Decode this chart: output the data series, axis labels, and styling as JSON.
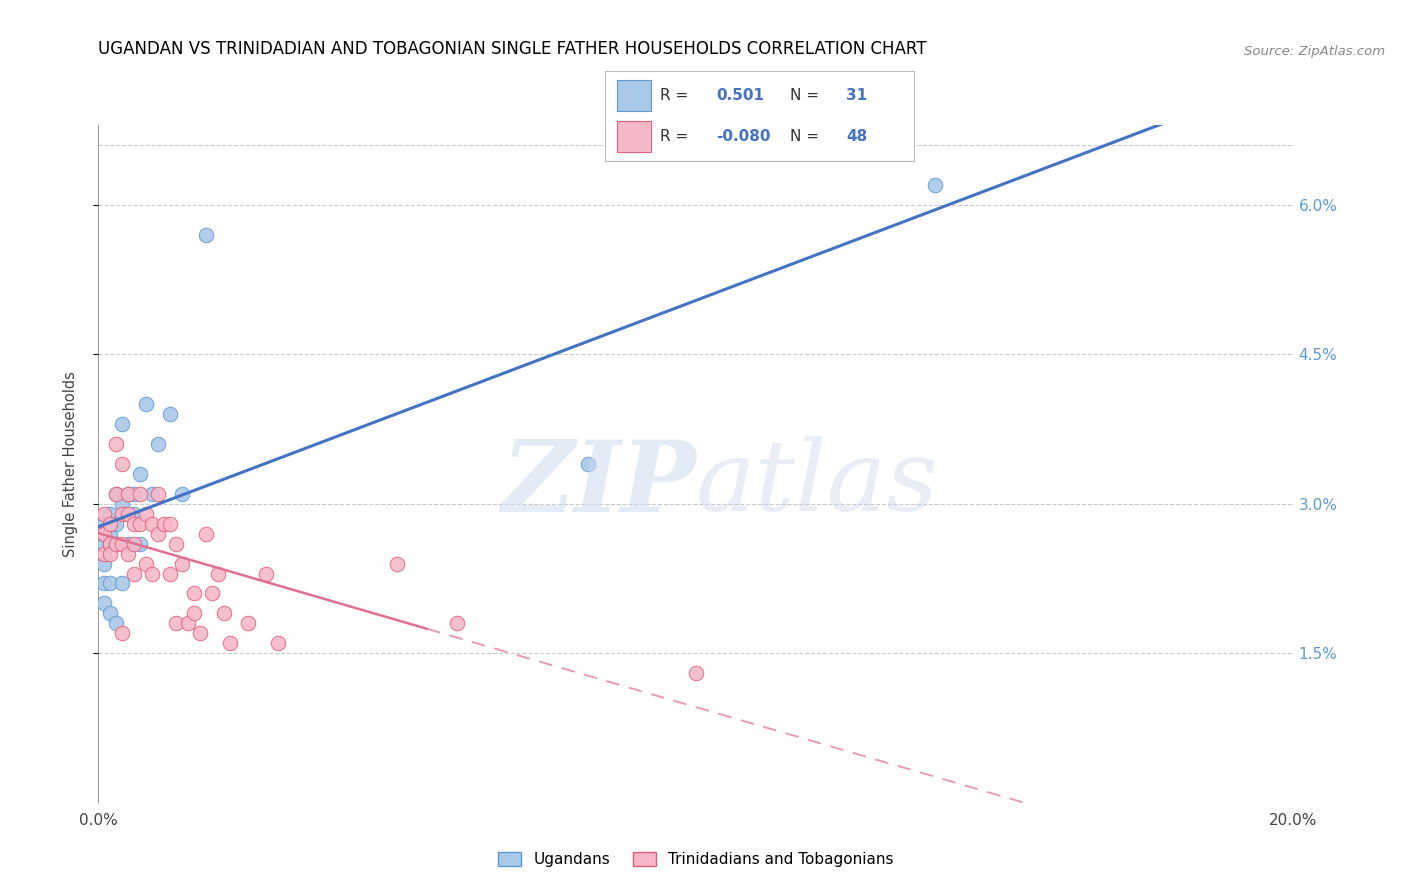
{
  "title": "UGANDAN VS TRINIDADIAN AND TOBAGONIAN SINGLE FATHER HOUSEHOLDS CORRELATION CHART",
  "source": "Source: ZipAtlas.com",
  "ylabel": "Single Father Households",
  "xlim": [
    0.0,
    0.2
  ],
  "ylim": [
    0.0,
    0.068
  ],
  "xticks": [
    0.0,
    0.04,
    0.08,
    0.12,
    0.16,
    0.2
  ],
  "xticklabels": [
    "0.0%",
    "",
    "",
    "",
    "",
    "20.0%"
  ],
  "yticks": [
    0.015,
    0.03,
    0.045,
    0.06
  ],
  "yticklabels": [
    "1.5%",
    "3.0%",
    "4.5%",
    "6.0%"
  ],
  "ugandan_R": 0.501,
  "ugandan_N": 31,
  "trinidadian_R": -0.08,
  "trinidadian_N": 48,
  "ugandan_color": "#aac8e8",
  "ugandan_edge_color": "#5b9bd5",
  "trinidadian_color": "#f4b8c8",
  "trinidadian_edge_color": "#e0607a",
  "ugandan_line_color": "#4472c4",
  "trinidadian_line_color": "#e07090",
  "ugandan_x": [
    0.001,
    0.001,
    0.001,
    0.001,
    0.001,
    0.002,
    0.002,
    0.002,
    0.002,
    0.002,
    0.003,
    0.003,
    0.003,
    0.003,
    0.004,
    0.004,
    0.005,
    0.005,
    0.006,
    0.006,
    0.007,
    0.007,
    0.008,
    0.009,
    0.01,
    0.012,
    0.014,
    0.018,
    0.004,
    0.082,
    0.14
  ],
  "ugandan_y": [
    0.028,
    0.026,
    0.024,
    0.022,
    0.02,
    0.029,
    0.027,
    0.026,
    0.022,
    0.019,
    0.031,
    0.028,
    0.026,
    0.018,
    0.03,
    0.022,
    0.031,
    0.026,
    0.031,
    0.029,
    0.033,
    0.026,
    0.04,
    0.031,
    0.036,
    0.039,
    0.031,
    0.057,
    0.038,
    0.034,
    0.062
  ],
  "trinidadian_x": [
    0.001,
    0.001,
    0.001,
    0.002,
    0.002,
    0.002,
    0.003,
    0.003,
    0.003,
    0.004,
    0.004,
    0.004,
    0.004,
    0.005,
    0.005,
    0.005,
    0.006,
    0.006,
    0.006,
    0.007,
    0.007,
    0.008,
    0.008,
    0.009,
    0.009,
    0.01,
    0.01,
    0.011,
    0.012,
    0.012,
    0.013,
    0.013,
    0.014,
    0.015,
    0.016,
    0.016,
    0.017,
    0.018,
    0.019,
    0.02,
    0.021,
    0.022,
    0.025,
    0.028,
    0.03,
    0.05,
    0.06,
    0.1
  ],
  "trinidadian_y": [
    0.029,
    0.027,
    0.025,
    0.028,
    0.026,
    0.025,
    0.036,
    0.031,
    0.026,
    0.034,
    0.029,
    0.026,
    0.017,
    0.031,
    0.029,
    0.025,
    0.028,
    0.026,
    0.023,
    0.031,
    0.028,
    0.029,
    0.024,
    0.028,
    0.023,
    0.031,
    0.027,
    0.028,
    0.028,
    0.023,
    0.026,
    0.018,
    0.024,
    0.018,
    0.021,
    0.019,
    0.017,
    0.027,
    0.021,
    0.023,
    0.019,
    0.016,
    0.018,
    0.023,
    0.016,
    0.024,
    0.018,
    0.013
  ]
}
